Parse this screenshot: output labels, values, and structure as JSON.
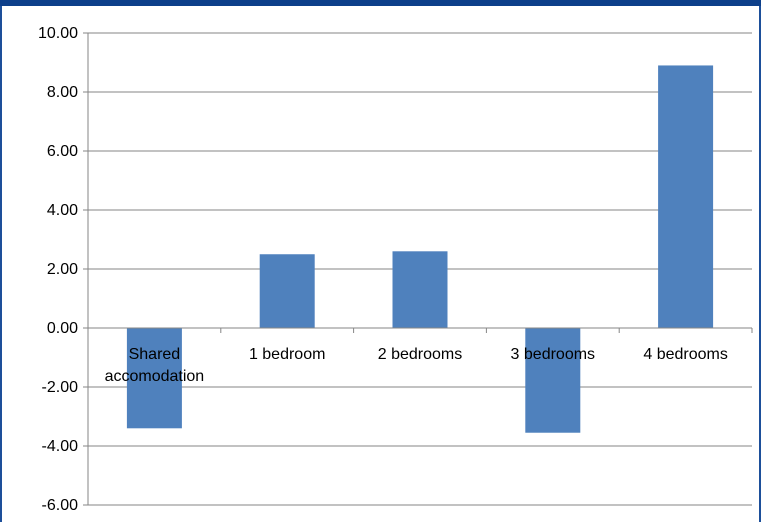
{
  "chart_data": {
    "type": "bar",
    "title": "",
    "xlabel": "",
    "ylabel": "",
    "categories": [
      "Shared\naccomodation",
      "1 bedroom",
      "2 bedrooms",
      "3 bedrooms",
      "4 bedrooms"
    ],
    "values": [
      -3.4,
      2.5,
      2.6,
      -3.55,
      8.9
    ],
    "ylim": [
      -6,
      10
    ],
    "ytick_step": 2,
    "ytick_labels": [
      "10.00",
      "8.00",
      "6.00",
      "4.00",
      "2.00",
      "0.00",
      "-2.00",
      "-4.00",
      "-6.00"
    ],
    "grid": true,
    "legend": "none",
    "bar_color": "#4f81bd",
    "gridline_color": "#868686"
  },
  "colors": {
    "frame_accent": "#0d3f8a"
  }
}
